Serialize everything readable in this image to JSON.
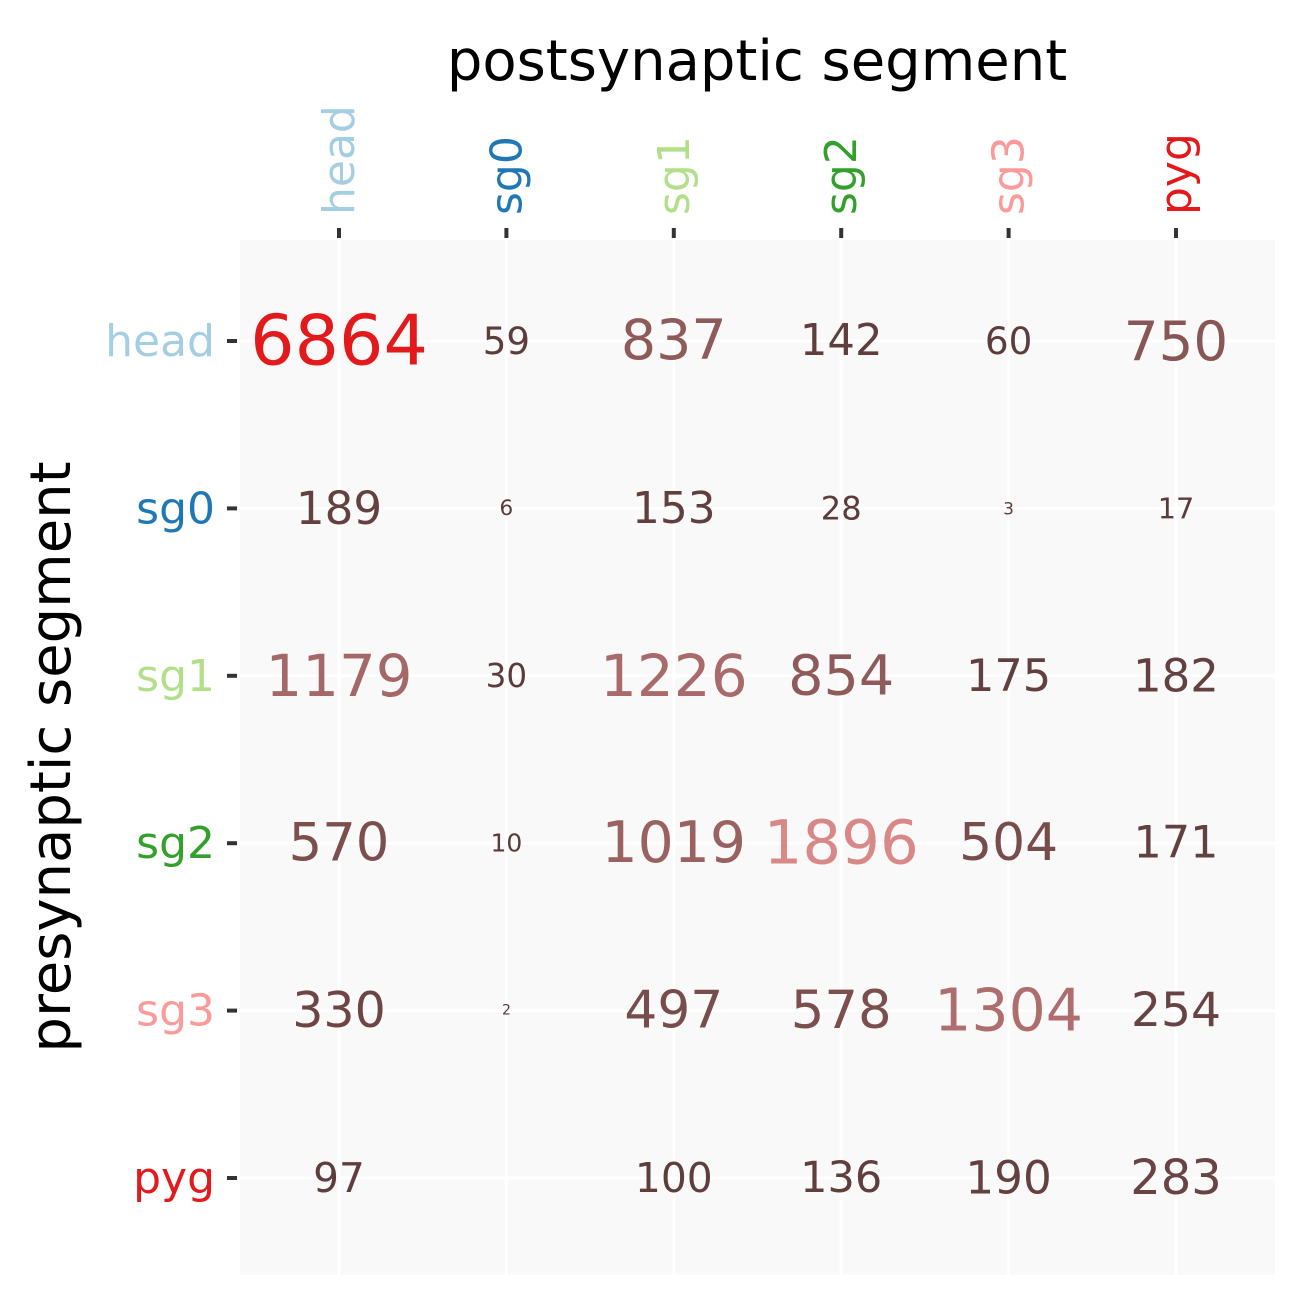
{
  "chart_data": {
    "type": "table",
    "title": "",
    "xlabel": "postsynaptic segment",
    "ylabel": "presynaptic segment",
    "columns": [
      "head",
      "sg0",
      "sg1",
      "sg2",
      "sg3",
      "pyg"
    ],
    "rows": [
      "head",
      "sg0",
      "sg1",
      "sg2",
      "sg3",
      "pyg"
    ],
    "segment_colors": {
      "head": "#a6cee3",
      "sg0": "#1f78b4",
      "sg1": "#b2df8a",
      "sg2": "#33a02c",
      "sg3": "#fb9a99",
      "pyg": "#e31a1c"
    },
    "values": [
      [
        6864,
        59,
        837,
        142,
        60,
        750
      ],
      [
        189,
        6,
        153,
        28,
        3,
        17
      ],
      [
        1179,
        30,
        1226,
        854,
        175,
        182
      ],
      [
        570,
        10,
        1019,
        1896,
        504,
        171
      ],
      [
        330,
        2,
        497,
        578,
        1304,
        254
      ],
      [
        97,
        null,
        100,
        136,
        190,
        283
      ]
    ],
    "color_scale": {
      "low": "#5a3a3a",
      "mid": "#d98888",
      "high": "#e31a1c"
    },
    "panel_background": "#f9f9f9",
    "grid": true
  }
}
